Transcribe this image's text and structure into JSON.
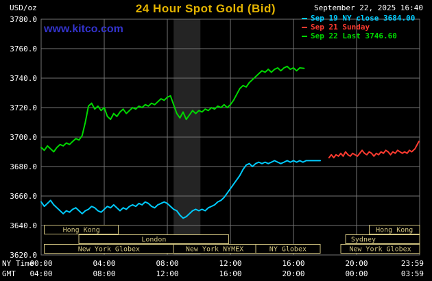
{
  "colors": {
    "background": "#000000",
    "text": "#ffffff",
    "title": "#e4b400",
    "watermark": "#3333cc",
    "grid": "#757575",
    "band": "#242424",
    "session": "#cfc27f"
  },
  "header": {
    "unit_label": "USD/oz",
    "title": "24 Hour Spot Gold (Bid)",
    "datetime": "September 22, 2025 16:40",
    "watermark": "www.kitco.com"
  },
  "legend": [
    {
      "label": "Sep 19 NY close 3684.00",
      "color": "#00ccff"
    },
    {
      "label": "Sep 21 Sunday",
      "color": "#ff3b30"
    },
    {
      "label": "Sep 22 Last 3746.60",
      "color": "#00d800"
    }
  ],
  "axes": {
    "ny_label": "NY Time",
    "gmt_label": "GMT",
    "ny_ticks": [
      "00:00",
      "04:00",
      "08:00",
      "12:00",
      "16:00",
      "20:00",
      "23:59"
    ],
    "gmt_ticks": [
      "04:00",
      "08:00",
      "12:00",
      "16:00",
      "20:00",
      "00:00",
      "03:59"
    ]
  },
  "chart_data": {
    "type": "line",
    "title": "24 Hour Spot Gold (Bid)",
    "ylabel": "USD/oz",
    "xlabel": "NY Time",
    "ylim": [
      3620,
      3780
    ],
    "xlim_hours": [
      0,
      24
    ],
    "grid": true,
    "legend_position": "top-right",
    "y_ticks": [
      3780,
      3760,
      3740,
      3720,
      3700,
      3680,
      3660,
      3640,
      3620
    ],
    "tick_hours": [
      0,
      4,
      8,
      12,
      16,
      20,
      24
    ],
    "x_gridline_hours": [
      4,
      8,
      12,
      16,
      20
    ],
    "shaded_bands": [
      {
        "start_hour": 8.4,
        "end_hour": 10.1
      }
    ],
    "series": [
      {
        "id": "sep19",
        "name": "Sep 19 NY close 3684.00",
        "color": "#00ccff",
        "points": [
          [
            0,
            3656
          ],
          [
            0.2,
            3653
          ],
          [
            0.4,
            3655
          ],
          [
            0.6,
            3657
          ],
          [
            0.8,
            3654
          ],
          [
            1,
            3652
          ],
          [
            1.2,
            3650
          ],
          [
            1.4,
            3648
          ],
          [
            1.6,
            3650
          ],
          [
            1.8,
            3649
          ],
          [
            2,
            3651
          ],
          [
            2.2,
            3652
          ],
          [
            2.4,
            3650
          ],
          [
            2.6,
            3648
          ],
          [
            2.8,
            3650
          ],
          [
            3,
            3651
          ],
          [
            3.2,
            3653
          ],
          [
            3.4,
            3652
          ],
          [
            3.6,
            3650
          ],
          [
            3.8,
            3649
          ],
          [
            4,
            3651
          ],
          [
            4.2,
            3653
          ],
          [
            4.4,
            3652
          ],
          [
            4.6,
            3654
          ],
          [
            4.8,
            3652
          ],
          [
            5,
            3650
          ],
          [
            5.2,
            3652
          ],
          [
            5.4,
            3651
          ],
          [
            5.6,
            3653
          ],
          [
            5.8,
            3654
          ],
          [
            6,
            3653
          ],
          [
            6.2,
            3655
          ],
          [
            6.4,
            3654
          ],
          [
            6.6,
            3656
          ],
          [
            6.8,
            3655
          ],
          [
            7,
            3653
          ],
          [
            7.2,
            3652
          ],
          [
            7.4,
            3654
          ],
          [
            7.6,
            3655
          ],
          [
            7.8,
            3656
          ],
          [
            8,
            3655
          ],
          [
            8.2,
            3653
          ],
          [
            8.4,
            3651
          ],
          [
            8.6,
            3650
          ],
          [
            8.8,
            3647
          ],
          [
            9,
            3645
          ],
          [
            9.2,
            3646
          ],
          [
            9.4,
            3648
          ],
          [
            9.6,
            3650
          ],
          [
            9.8,
            3651
          ],
          [
            10,
            3650
          ],
          [
            10.2,
            3651
          ],
          [
            10.4,
            3650
          ],
          [
            10.6,
            3652
          ],
          [
            10.8,
            3653
          ],
          [
            11,
            3654
          ],
          [
            11.2,
            3656
          ],
          [
            11.4,
            3657
          ],
          [
            11.6,
            3659
          ],
          [
            11.8,
            3662
          ],
          [
            12,
            3665
          ],
          [
            12.2,
            3668
          ],
          [
            12.4,
            3671
          ],
          [
            12.6,
            3674
          ],
          [
            12.8,
            3678
          ],
          [
            13,
            3681
          ],
          [
            13.2,
            3682
          ],
          [
            13.4,
            3680
          ],
          [
            13.6,
            3682
          ],
          [
            13.8,
            3683
          ],
          [
            14,
            3682
          ],
          [
            14.2,
            3683
          ],
          [
            14.4,
            3682
          ],
          [
            14.6,
            3683
          ],
          [
            14.8,
            3684
          ],
          [
            15,
            3683
          ],
          [
            15.2,
            3682
          ],
          [
            15.4,
            3683
          ],
          [
            15.6,
            3684
          ],
          [
            15.8,
            3683
          ],
          [
            16,
            3684
          ],
          [
            16.2,
            3683
          ],
          [
            16.4,
            3684
          ],
          [
            16.6,
            3683
          ],
          [
            16.8,
            3684
          ],
          [
            17,
            3684
          ],
          [
            17.4,
            3684
          ],
          [
            17.7,
            3684
          ]
        ]
      },
      {
        "id": "sep21",
        "name": "Sep 21 Sunday",
        "color": "#ff3b30",
        "points": [
          [
            18.25,
            3686
          ],
          [
            18.4,
            3688
          ],
          [
            18.55,
            3686
          ],
          [
            18.7,
            3688
          ],
          [
            18.85,
            3687
          ],
          [
            19,
            3689
          ],
          [
            19.15,
            3687
          ],
          [
            19.3,
            3690
          ],
          [
            19.45,
            3688
          ],
          [
            19.6,
            3687
          ],
          [
            19.75,
            3689
          ],
          [
            19.9,
            3688
          ],
          [
            20.05,
            3687
          ],
          [
            20.2,
            3689
          ],
          [
            20.35,
            3691
          ],
          [
            20.5,
            3689
          ],
          [
            20.65,
            3688
          ],
          [
            20.8,
            3690
          ],
          [
            20.95,
            3689
          ],
          [
            21.1,
            3687
          ],
          [
            21.25,
            3689
          ],
          [
            21.4,
            3688
          ],
          [
            21.55,
            3690
          ],
          [
            21.7,
            3689
          ],
          [
            21.85,
            3691
          ],
          [
            22,
            3690
          ],
          [
            22.15,
            3688
          ],
          [
            22.3,
            3690
          ],
          [
            22.45,
            3689
          ],
          [
            22.6,
            3691
          ],
          [
            22.75,
            3690
          ],
          [
            22.9,
            3689
          ],
          [
            23.05,
            3690
          ],
          [
            23.2,
            3689
          ],
          [
            23.35,
            3691
          ],
          [
            23.5,
            3690
          ],
          [
            23.6,
            3691
          ],
          [
            23.7,
            3692
          ],
          [
            23.8,
            3694
          ],
          [
            23.95,
            3697
          ]
        ]
      },
      {
        "id": "sep22",
        "name": "Sep 22 Last 3746.60",
        "color": "#00d800",
        "points": [
          [
            0,
            3693
          ],
          [
            0.2,
            3691
          ],
          [
            0.4,
            3694
          ],
          [
            0.6,
            3692
          ],
          [
            0.8,
            3690
          ],
          [
            1,
            3693
          ],
          [
            1.2,
            3695
          ],
          [
            1.4,
            3694
          ],
          [
            1.6,
            3696
          ],
          [
            1.8,
            3695
          ],
          [
            2,
            3697
          ],
          [
            2.2,
            3699
          ],
          [
            2.4,
            3698
          ],
          [
            2.6,
            3701
          ],
          [
            2.8,
            3710
          ],
          [
            3,
            3721
          ],
          [
            3.2,
            3723
          ],
          [
            3.4,
            3719
          ],
          [
            3.6,
            3721
          ],
          [
            3.8,
            3718
          ],
          [
            4,
            3720
          ],
          [
            4.2,
            3714
          ],
          [
            4.4,
            3712
          ],
          [
            4.6,
            3716
          ],
          [
            4.8,
            3714
          ],
          [
            5,
            3717
          ],
          [
            5.2,
            3719
          ],
          [
            5.4,
            3716
          ],
          [
            5.6,
            3718
          ],
          [
            5.8,
            3720
          ],
          [
            6,
            3719
          ],
          [
            6.2,
            3721
          ],
          [
            6.4,
            3720
          ],
          [
            6.6,
            3722
          ],
          [
            6.8,
            3721
          ],
          [
            7,
            3723
          ],
          [
            7.2,
            3722
          ],
          [
            7.4,
            3724
          ],
          [
            7.6,
            3726
          ],
          [
            7.8,
            3725
          ],
          [
            8,
            3727
          ],
          [
            8.2,
            3728
          ],
          [
            8.4,
            3722
          ],
          [
            8.6,
            3716
          ],
          [
            8.8,
            3713
          ],
          [
            9,
            3717
          ],
          [
            9.2,
            3712
          ],
          [
            9.4,
            3715
          ],
          [
            9.6,
            3718
          ],
          [
            9.8,
            3716
          ],
          [
            10,
            3718
          ],
          [
            10.2,
            3717
          ],
          [
            10.4,
            3719
          ],
          [
            10.6,
            3718
          ],
          [
            10.8,
            3720
          ],
          [
            11,
            3719
          ],
          [
            11.2,
            3721
          ],
          [
            11.4,
            3720
          ],
          [
            11.6,
            3722
          ],
          [
            11.8,
            3720
          ],
          [
            12,
            3722
          ],
          [
            12.2,
            3725
          ],
          [
            12.4,
            3729
          ],
          [
            12.6,
            3733
          ],
          [
            12.8,
            3735
          ],
          [
            13,
            3734
          ],
          [
            13.2,
            3737
          ],
          [
            13.4,
            3739
          ],
          [
            13.6,
            3741
          ],
          [
            13.8,
            3743
          ],
          [
            14,
            3745
          ],
          [
            14.2,
            3744
          ],
          [
            14.4,
            3746
          ],
          [
            14.6,
            3744
          ],
          [
            14.8,
            3746
          ],
          [
            15,
            3747
          ],
          [
            15.2,
            3745
          ],
          [
            15.4,
            3747
          ],
          [
            15.6,
            3748
          ],
          [
            15.8,
            3746
          ],
          [
            16,
            3747
          ],
          [
            16.2,
            3745
          ],
          [
            16.4,
            3747
          ],
          [
            16.67,
            3746.6
          ]
        ]
      }
    ],
    "sessions": [
      {
        "row": 0,
        "start_hour": 0.2,
        "end_hour": 4.9,
        "label": "Hong Kong",
        "align": "center"
      },
      {
        "row": 0,
        "start_hour": 20.8,
        "end_hour": 24,
        "label": "Hong Kong",
        "align": "center"
      },
      {
        "row": 1,
        "start_hour": 2.4,
        "end_hour": 11.9,
        "label": "London",
        "align": "center"
      },
      {
        "row": 1,
        "start_hour": 19.3,
        "end_hour": 24,
        "label": "Sydney",
        "align": "left"
      },
      {
        "row": 2,
        "start_hour": 0.2,
        "end_hour": 8.4,
        "label": "New York Globex",
        "align": "center"
      },
      {
        "row": 2,
        "start_hour": 8.4,
        "end_hour": 13.6,
        "label": "New York NYMEX",
        "align": "center"
      },
      {
        "row": 2,
        "start_hour": 13.6,
        "end_hour": 17.7,
        "label": "NY Globex",
        "align": "center"
      },
      {
        "row": 2,
        "start_hour": 19,
        "end_hour": 24,
        "label": "New York Globex",
        "align": "center"
      }
    ]
  }
}
